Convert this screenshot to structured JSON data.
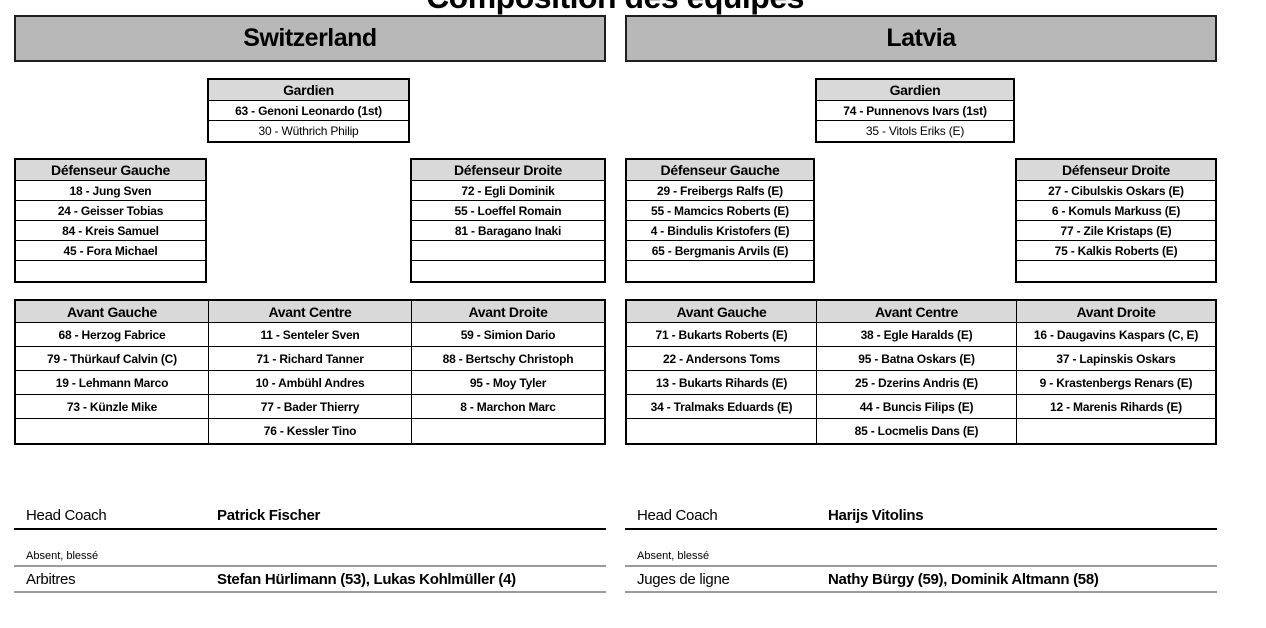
{
  "title": "Composition des équipes",
  "colors": {
    "team_header_bg": "#b8b8b8",
    "section_header_bg": "#d9d9d9",
    "table_border": "#000000",
    "separator_gray": "#9a9a9a"
  },
  "teams": [
    {
      "name": "Switzerland",
      "goalkeeper": {
        "header": "Gardien",
        "starter": "63 - Genoni Leonardo (1st)",
        "backup": "30 - Wüthrich Philip"
      },
      "defense_left": {
        "header": "Défenseur Gauche",
        "rows": [
          "18 - Jung Sven",
          "24 - Geisser Tobias",
          "84 - Kreis Samuel",
          "45 - Fora Michael",
          ""
        ]
      },
      "defense_right": {
        "header": "Défenseur Droite",
        "rows": [
          "72 - Egli Dominik",
          "55 - Loeffel Romain",
          "81 - Baragano Inaki",
          "",
          ""
        ]
      },
      "forwards": {
        "left": {
          "header": "Avant Gauche",
          "rows": [
            "68 - Herzog Fabrice",
            "79 - Thürkauf Calvin (C)",
            "19 - Lehmann Marco",
            "73 - Künzle Mike",
            ""
          ]
        },
        "center": {
          "header": "Avant Centre",
          "rows": [
            "11 - Senteler Sven",
            "71 - Richard Tanner",
            "10 - Ambühl Andres",
            "77 - Bader Thierry",
            "76 - Kessler Tino"
          ]
        },
        "right": {
          "header": "Avant Droite",
          "rows": [
            "59 - Simion Dario",
            "88 - Bertschy Christoph",
            "95 - Moy Tyler",
            "8 - Marchon Marc",
            ""
          ]
        }
      },
      "info": {
        "coach_label": "Head Coach",
        "coach_name": "Patrick Fischer",
        "absent_label": "Absent, blessé",
        "absent_value": "",
        "officials_label": "Arbitres",
        "officials_value": "Stefan Hürlimann (53), Lukas Kohlmüller (4)"
      }
    },
    {
      "name": "Latvia",
      "goalkeeper": {
        "header": "Gardien",
        "starter": "74 - Punnenovs Ivars (1st)",
        "backup": "35 - Vitols Eriks (E)"
      },
      "defense_left": {
        "header": "Défenseur Gauche",
        "rows": [
          "29 - Freibergs Ralfs (E)",
          "55 - Mamcics Roberts (E)",
          "4 - Bindulis Kristofers (E)",
          "65 - Bergmanis Arvils (E)",
          ""
        ]
      },
      "defense_right": {
        "header": "Défenseur Droite",
        "rows": [
          "27 - Cibulskis Oskars (E)",
          "6 - Komuls Markuss (E)",
          "77 - Zile Kristaps (E)",
          "75 - Kalkis Roberts (E)",
          ""
        ]
      },
      "forwards": {
        "left": {
          "header": "Avant Gauche",
          "rows": [
            "71 - Bukarts Roberts (E)",
            "22 - Andersons Toms",
            "13 - Bukarts Rihards (E)",
            "34 - Tralmaks Eduards (E)",
            ""
          ]
        },
        "center": {
          "header": "Avant Centre",
          "rows": [
            "38 - Egle Haralds (E)",
            "95 - Batna Oskars (E)",
            "25 - Dzerins Andris (E)",
            "44 - Buncis Filips (E)",
            "85 - Locmelis Dans (E)"
          ]
        },
        "right": {
          "header": "Avant Droite",
          "rows": [
            "16 - Daugavins Kaspars (C, E)",
            "37 - Lapinskis Oskars",
            "9 - Krastenbergs Renars (E)",
            "12 - Marenis Rihards (E)",
            ""
          ]
        }
      },
      "info": {
        "coach_label": "Head Coach",
        "coach_name": "Harijs Vitolins",
        "absent_label": "Absent, blessé",
        "absent_value": "",
        "officials_label": "Juges de ligne",
        "officials_value": "Nathy Bürgy (59), Dominik Altmann (58)"
      }
    }
  ]
}
